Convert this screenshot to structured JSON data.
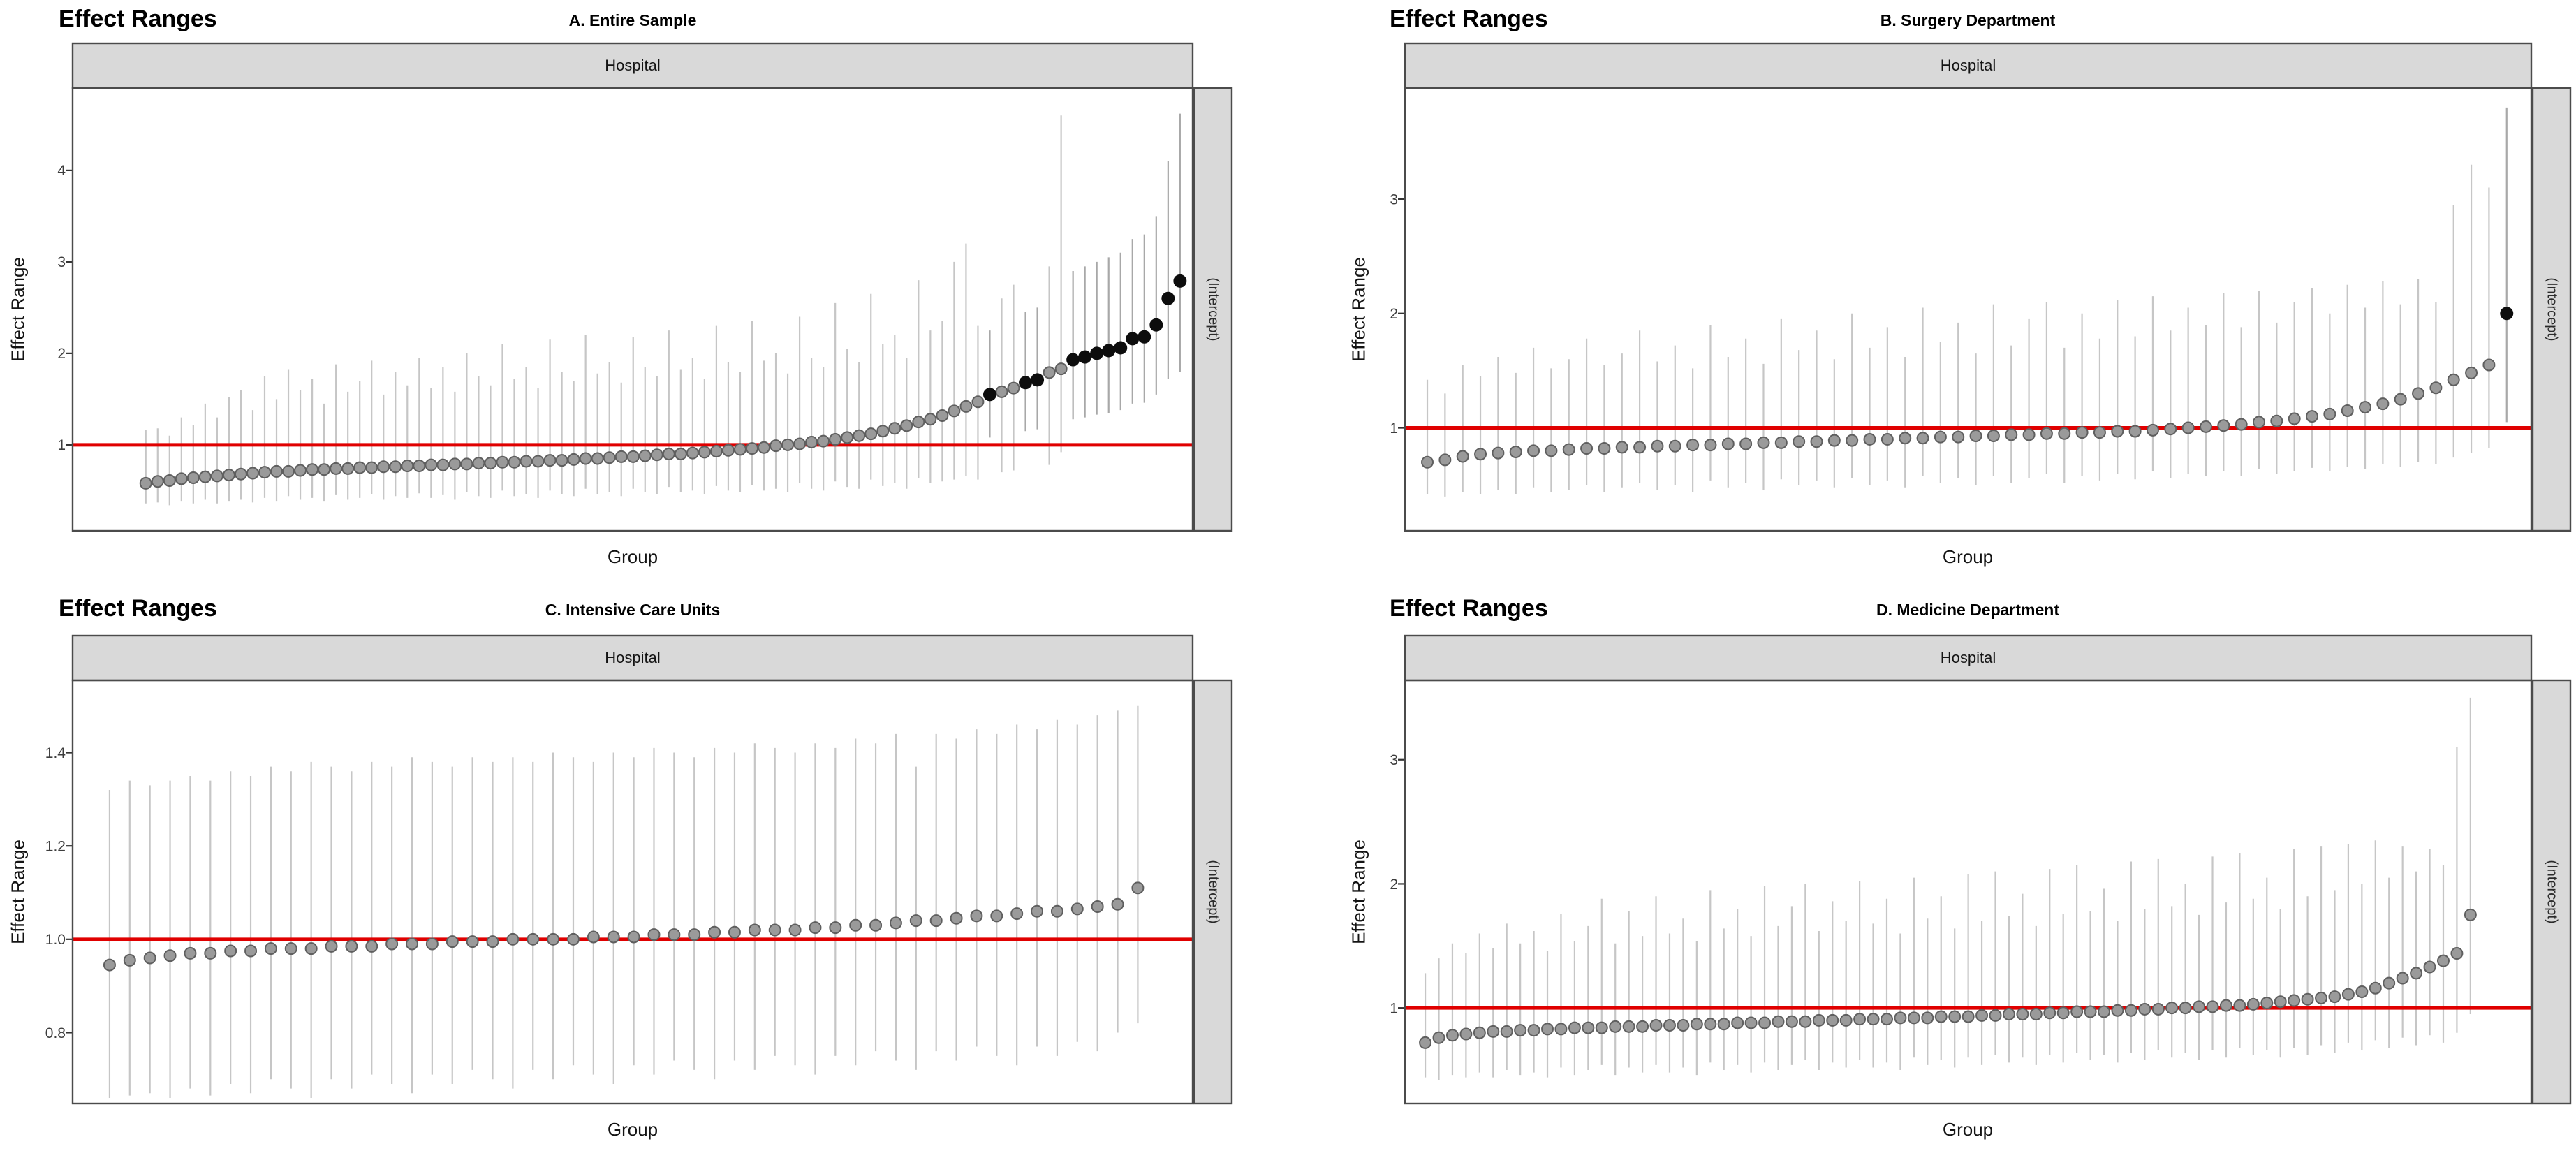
{
  "figure": {
    "background": "#ffffff"
  },
  "colors": {
    "ref_line": "#e00000",
    "errorbar": "#c6c6c6",
    "errorbar_dark": "#a8a8a8",
    "point": "#9a9a9a",
    "point_stroke": "#5f5f5f",
    "sig_point": "#0d0d0d",
    "strip_bg": "#d9d9d9",
    "panel_border": "#4b4b4b",
    "tick": "#333333",
    "tick_label": "#3d3d3d"
  },
  "chart_data": [
    {
      "type": "scatter",
      "panel": "A",
      "title": "Effect Ranges",
      "subtitle": "A. Entire Sample",
      "facet_top": "Hospital",
      "facet_right": "(Intercept)",
      "ylabel": "Effect Range",
      "xlabel": "Group",
      "y_domain": [
        0.06,
        4.9
      ],
      "y_tick_values": [
        1,
        2,
        3,
        4
      ],
      "y_tick_labels": [
        "1",
        "2",
        "3",
        "4"
      ],
      "ref_line": 1,
      "legend": "none",
      "grid": "off",
      "points": {
        "est": [
          0.58,
          0.6,
          0.61,
          0.63,
          0.64,
          0.65,
          0.66,
          0.67,
          0.68,
          0.69,
          0.7,
          0.71,
          0.71,
          0.72,
          0.73,
          0.73,
          0.74,
          0.74,
          0.75,
          0.75,
          0.76,
          0.76,
          0.77,
          0.77,
          0.78,
          0.78,
          0.79,
          0.79,
          0.8,
          0.8,
          0.81,
          0.81,
          0.82,
          0.82,
          0.83,
          0.83,
          0.84,
          0.85,
          0.85,
          0.86,
          0.87,
          0.87,
          0.88,
          0.89,
          0.9,
          0.9,
          0.91,
          0.92,
          0.93,
          0.94,
          0.95,
          0.96,
          0.97,
          0.99,
          1.0,
          1.01,
          1.03,
          1.04,
          1.06,
          1.08,
          1.1,
          1.12,
          1.15,
          1.18,
          1.21,
          1.25,
          1.28,
          1.32,
          1.37,
          1.42,
          1.47,
          1.55,
          1.58,
          1.62,
          1.68,
          1.71,
          1.79,
          1.83,
          1.93,
          1.96,
          2.0,
          2.03,
          2.06,
          2.16,
          2.18,
          2.31,
          2.6,
          2.79
        ],
        "lo": [
          0.36,
          0.37,
          0.34,
          0.38,
          0.36,
          0.4,
          0.36,
          0.38,
          0.4,
          0.37,
          0.42,
          0.38,
          0.44,
          0.4,
          0.42,
          0.38,
          0.45,
          0.4,
          0.42,
          0.46,
          0.4,
          0.44,
          0.42,
          0.47,
          0.42,
          0.45,
          0.4,
          0.48,
          0.44,
          0.42,
          0.5,
          0.44,
          0.46,
          0.42,
          0.5,
          0.46,
          0.44,
          0.52,
          0.46,
          0.48,
          0.44,
          0.52,
          0.48,
          0.46,
          0.54,
          0.48,
          0.5,
          0.46,
          0.55,
          0.5,
          0.48,
          0.56,
          0.5,
          0.52,
          0.48,
          0.58,
          0.52,
          0.5,
          0.6,
          0.54,
          0.52,
          0.62,
          0.55,
          0.58,
          0.52,
          0.64,
          0.58,
          0.6,
          0.62,
          0.66,
          0.62,
          1.08,
          0.7,
          0.72,
          1.15,
          1.17,
          0.78,
          0.92,
          1.28,
          1.3,
          1.33,
          1.35,
          1.38,
          1.45,
          1.46,
          1.55,
          1.72,
          1.8
        ],
        "hi": [
          1.16,
          1.18,
          1.1,
          1.3,
          1.22,
          1.45,
          1.3,
          1.52,
          1.6,
          1.38,
          1.75,
          1.5,
          1.82,
          1.6,
          1.72,
          1.45,
          1.88,
          1.58,
          1.7,
          1.92,
          1.55,
          1.8,
          1.65,
          1.95,
          1.62,
          1.85,
          1.58,
          2.0,
          1.75,
          1.65,
          2.1,
          1.72,
          1.85,
          1.62,
          2.15,
          1.8,
          1.7,
          2.2,
          1.78,
          1.9,
          1.68,
          2.18,
          1.85,
          1.75,
          2.25,
          1.82,
          1.95,
          1.72,
          2.3,
          1.9,
          1.8,
          2.35,
          1.92,
          2.0,
          1.78,
          2.4,
          1.95,
          1.85,
          2.55,
          2.05,
          1.9,
          2.65,
          2.1,
          2.2,
          1.95,
          2.8,
          2.25,
          2.35,
          3.0,
          3.2,
          2.3,
          2.25,
          2.6,
          2.75,
          2.45,
          2.5,
          2.95,
          4.6,
          2.9,
          2.95,
          3.0,
          3.05,
          3.1,
          3.25,
          3.3,
          3.5,
          4.1,
          4.62
        ],
        "sig_indices": [
          71,
          74,
          75,
          78,
          79,
          80,
          81,
          82,
          83,
          84,
          85,
          86,
          87
        ]
      }
    },
    {
      "type": "scatter",
      "panel": "B",
      "title": "Effect Ranges",
      "subtitle": "B. Surgery Department",
      "facet_top": "Hospital",
      "facet_right": "(Intercept)",
      "ylabel": "Effect Range",
      "xlabel": "Group",
      "y_domain": [
        0.1,
        3.97
      ],
      "y_tick_values": [
        1,
        2,
        3
      ],
      "y_tick_labels": [
        "1",
        "2",
        "3"
      ],
      "ref_line": 1,
      "legend": "none",
      "grid": "off",
      "points": {
        "est": [
          0.7,
          0.72,
          0.75,
          0.77,
          0.78,
          0.79,
          0.8,
          0.8,
          0.81,
          0.82,
          0.82,
          0.83,
          0.83,
          0.84,
          0.84,
          0.85,
          0.85,
          0.86,
          0.86,
          0.87,
          0.87,
          0.88,
          0.88,
          0.89,
          0.89,
          0.9,
          0.9,
          0.91,
          0.91,
          0.92,
          0.92,
          0.93,
          0.93,
          0.94,
          0.94,
          0.95,
          0.95,
          0.96,
          0.96,
          0.97,
          0.97,
          0.98,
          0.99,
          1.0,
          1.01,
          1.02,
          1.03,
          1.05,
          1.06,
          1.08,
          1.1,
          1.12,
          1.15,
          1.18,
          1.21,
          1.25,
          1.3,
          1.35,
          1.42,
          1.48,
          1.55,
          2.0
        ],
        "lo": [
          0.42,
          0.4,
          0.44,
          0.42,
          0.46,
          0.42,
          0.48,
          0.44,
          0.46,
          0.5,
          0.44,
          0.48,
          0.52,
          0.46,
          0.5,
          0.44,
          0.54,
          0.48,
          0.52,
          0.46,
          0.55,
          0.5,
          0.54,
          0.48,
          0.56,
          0.5,
          0.54,
          0.48,
          0.58,
          0.52,
          0.56,
          0.5,
          0.58,
          0.52,
          0.56,
          0.6,
          0.52,
          0.58,
          0.54,
          0.6,
          0.55,
          0.62,
          0.56,
          0.6,
          0.58,
          0.62,
          0.58,
          0.64,
          0.6,
          0.62,
          0.65,
          0.62,
          0.66,
          0.64,
          0.68,
          0.66,
          0.7,
          0.68,
          0.74,
          0.78,
          0.82,
          1.05
        ],
        "hi": [
          1.42,
          1.3,
          1.55,
          1.45,
          1.62,
          1.48,
          1.7,
          1.52,
          1.6,
          1.78,
          1.55,
          1.65,
          1.85,
          1.58,
          1.72,
          1.52,
          1.9,
          1.62,
          1.78,
          1.56,
          1.95,
          1.68,
          1.85,
          1.6,
          2.0,
          1.7,
          1.88,
          1.62,
          2.05,
          1.75,
          1.92,
          1.65,
          2.08,
          1.72,
          1.95,
          2.1,
          1.7,
          2.0,
          1.78,
          2.12,
          1.8,
          2.15,
          1.85,
          2.05,
          1.9,
          2.18,
          1.88,
          2.2,
          1.92,
          2.1,
          2.22,
          2.0,
          2.25,
          2.05,
          2.28,
          2.08,
          2.3,
          2.1,
          2.95,
          3.3,
          3.1,
          3.8
        ],
        "sig_indices": [
          61
        ]
      }
    },
    {
      "type": "scatter",
      "panel": "C",
      "title": "Effect Ranges",
      "subtitle": "C. Intensive Care Units",
      "facet_top": "Hospital",
      "facet_right": "(Intercept)",
      "ylabel": "Effect Range",
      "xlabel": "Group",
      "y_domain": [
        0.648,
        1.555
      ],
      "y_tick_values": [
        0.8,
        1.0,
        1.2,
        1.4
      ],
      "y_tick_labels": [
        "0.8",
        "1.0",
        "1.2",
        "1.4"
      ],
      "ref_line": 1,
      "legend": "none",
      "grid": "off",
      "points": {
        "est": [
          0.945,
          0.955,
          0.96,
          0.965,
          0.97,
          0.97,
          0.975,
          0.975,
          0.98,
          0.98,
          0.98,
          0.985,
          0.985,
          0.985,
          0.99,
          0.99,
          0.99,
          0.995,
          0.995,
          0.995,
          1.0,
          1.0,
          1.0,
          1.0,
          1.005,
          1.005,
          1.005,
          1.01,
          1.01,
          1.01,
          1.015,
          1.015,
          1.02,
          1.02,
          1.02,
          1.025,
          1.025,
          1.03,
          1.03,
          1.035,
          1.04,
          1.04,
          1.045,
          1.05,
          1.05,
          1.055,
          1.06,
          1.06,
          1.065,
          1.07,
          1.075,
          1.11
        ],
        "lo": [
          0.66,
          0.665,
          0.67,
          0.66,
          0.68,
          0.665,
          0.69,
          0.67,
          0.7,
          0.68,
          0.66,
          0.7,
          0.68,
          0.71,
          0.69,
          0.67,
          0.71,
          0.69,
          0.72,
          0.7,
          0.68,
          0.72,
          0.7,
          0.73,
          0.71,
          0.69,
          0.73,
          0.71,
          0.74,
          0.72,
          0.7,
          0.74,
          0.72,
          0.75,
          0.73,
          0.71,
          0.75,
          0.73,
          0.76,
          0.74,
          0.72,
          0.76,
          0.74,
          0.77,
          0.75,
          0.73,
          0.77,
          0.75,
          0.78,
          0.76,
          0.8,
          0.82
        ],
        "hi": [
          1.32,
          1.34,
          1.33,
          1.34,
          1.35,
          1.34,
          1.36,
          1.35,
          1.37,
          1.36,
          1.38,
          1.37,
          1.36,
          1.38,
          1.37,
          1.39,
          1.38,
          1.37,
          1.39,
          1.38,
          1.39,
          1.38,
          1.4,
          1.39,
          1.38,
          1.4,
          1.39,
          1.41,
          1.4,
          1.39,
          1.41,
          1.4,
          1.42,
          1.41,
          1.4,
          1.42,
          1.41,
          1.43,
          1.42,
          1.44,
          1.37,
          1.44,
          1.43,
          1.45,
          1.44,
          1.46,
          1.45,
          1.47,
          1.46,
          1.48,
          1.49,
          1.5
        ],
        "sig_indices": []
      }
    },
    {
      "type": "scatter",
      "panel": "D",
      "title": "Effect Ranges",
      "subtitle": "D. Medicine Department",
      "facet_top": "Hospital",
      "facet_right": "(Intercept)",
      "ylabel": "Effect Range",
      "xlabel": "Group",
      "y_domain": [
        0.23,
        3.64
      ],
      "y_tick_values": [
        1,
        2,
        3
      ],
      "y_tick_labels": [
        "1",
        "2",
        "3"
      ],
      "ref_line": 1,
      "legend": "none",
      "grid": "off",
      "points": {
        "est": [
          0.72,
          0.76,
          0.78,
          0.79,
          0.8,
          0.81,
          0.81,
          0.82,
          0.82,
          0.83,
          0.83,
          0.84,
          0.84,
          0.84,
          0.85,
          0.85,
          0.85,
          0.86,
          0.86,
          0.86,
          0.87,
          0.87,
          0.87,
          0.88,
          0.88,
          0.88,
          0.89,
          0.89,
          0.89,
          0.9,
          0.9,
          0.9,
          0.91,
          0.91,
          0.91,
          0.92,
          0.92,
          0.92,
          0.93,
          0.93,
          0.93,
          0.94,
          0.94,
          0.95,
          0.95,
          0.95,
          0.96,
          0.96,
          0.97,
          0.97,
          0.97,
          0.98,
          0.98,
          0.99,
          0.99,
          1.0,
          1.0,
          1.01,
          1.01,
          1.02,
          1.02,
          1.03,
          1.04,
          1.05,
          1.06,
          1.07,
          1.08,
          1.09,
          1.11,
          1.13,
          1.16,
          1.2,
          1.24,
          1.28,
          1.33,
          1.38,
          1.44,
          1.75
        ],
        "lo": [
          0.44,
          0.42,
          0.46,
          0.44,
          0.48,
          0.44,
          0.5,
          0.46,
          0.48,
          0.44,
          0.52,
          0.46,
          0.5,
          0.54,
          0.46,
          0.52,
          0.48,
          0.54,
          0.48,
          0.52,
          0.46,
          0.56,
          0.5,
          0.54,
          0.48,
          0.56,
          0.5,
          0.54,
          0.58,
          0.5,
          0.56,
          0.52,
          0.58,
          0.52,
          0.56,
          0.5,
          0.6,
          0.54,
          0.58,
          0.52,
          0.6,
          0.54,
          0.62,
          0.56,
          0.6,
          0.54,
          0.62,
          0.56,
          0.64,
          0.58,
          0.62,
          0.56,
          0.64,
          0.58,
          0.66,
          0.6,
          0.64,
          0.58,
          0.66,
          0.6,
          0.68,
          0.62,
          0.66,
          0.6,
          0.68,
          0.62,
          0.7,
          0.64,
          0.72,
          0.66,
          0.74,
          0.68,
          0.76,
          0.7,
          0.78,
          0.72,
          0.8,
          0.95
        ],
        "hi": [
          1.28,
          1.4,
          1.52,
          1.44,
          1.6,
          1.48,
          1.68,
          1.52,
          1.62,
          1.46,
          1.76,
          1.54,
          1.66,
          1.88,
          1.52,
          1.78,
          1.58,
          1.9,
          1.6,
          1.72,
          1.54,
          1.95,
          1.64,
          1.8,
          1.58,
          1.98,
          1.66,
          1.82,
          2.0,
          1.62,
          1.86,
          1.7,
          2.02,
          1.68,
          1.88,
          1.6,
          2.05,
          1.72,
          1.9,
          1.64,
          2.08,
          1.7,
          2.1,
          1.74,
          1.92,
          1.66,
          2.12,
          1.76,
          2.15,
          1.78,
          1.96,
          1.7,
          2.18,
          1.8,
          2.2,
          1.82,
          2.0,
          1.75,
          2.22,
          1.85,
          2.25,
          1.88,
          2.05,
          1.8,
          2.28,
          1.9,
          2.3,
          1.95,
          2.32,
          2.0,
          2.35,
          2.05,
          2.3,
          2.1,
          2.28,
          2.15,
          3.1,
          3.5
        ],
        "sig_indices": []
      }
    }
  ]
}
